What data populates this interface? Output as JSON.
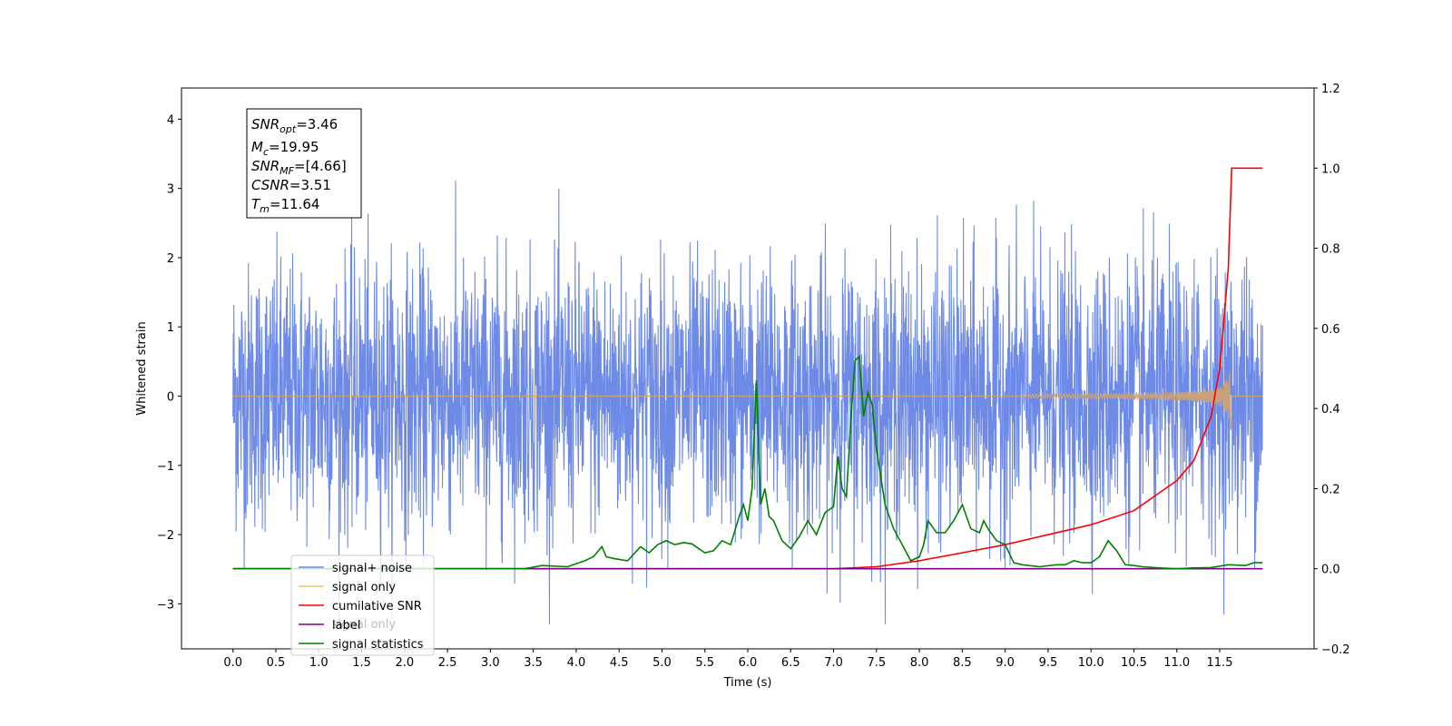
{
  "chart_data": {
    "type": "line",
    "xlabel": "Time (s)",
    "ylabel": "Whitened strain",
    "xlim": [
      -0.6,
      12.6
    ],
    "ylim": [
      -3.65,
      4.45
    ],
    "ylim_right": [
      -0.2,
      1.2
    ],
    "x_ticks": [
      "0.0",
      "0.5",
      "1.0",
      "1.5",
      "2.0",
      "2.5",
      "3.0",
      "3.5",
      "4.0",
      "4.5",
      "5.0",
      "5.5",
      "6.0",
      "6.5",
      "7.0",
      "7.5",
      "8.0",
      "8.5",
      "9.0",
      "9.5",
      "10.0",
      "10.5",
      "11.0",
      "11.5"
    ],
    "y_ticks": [
      "4",
      "3",
      "2",
      "1",
      "0",
      "−1",
      "−2",
      "−3"
    ],
    "y_ticks_right": [
      "1.2",
      "1.0",
      "0.8",
      "0.6",
      "0.4",
      "0.2",
      "0.0",
      "−0.2"
    ],
    "annotation": {
      "snr_opt": {
        "base": "SNR",
        "sub": "opt",
        "value": "=3.46"
      },
      "mc": {
        "base": "M",
        "sub": "c",
        "value": "=19.95"
      },
      "snr_mf": {
        "base": "SNR",
        "sub": "MF",
        "value": "=[4.66]"
      },
      "csnr": {
        "base": "CSNR",
        "value": "=3.51"
      },
      "tm": {
        "base": "T",
        "sub": "m",
        "value": "=11.64"
      }
    },
    "legend_entries": [
      "signal+ noise",
      "signal only",
      "cumilative SNR",
      "label",
      "signal statistics"
    ],
    "legend_ghost_text": "signal only",
    "legend_position": "lower-left",
    "colors": {
      "signal_noise": "#6d8ae6",
      "signal_only": "#f5c06b",
      "overlay_mix": "#c9a27a",
      "cumulative_snr": "#ff0000",
      "label": "#800080",
      "signal_statistics": "#008000"
    },
    "series": [
      {
        "name": "signal+ noise",
        "axis": "left",
        "note": "whitened noise with signal, std ~1, range ~[-3.3, 3.4]",
        "x_range": [
          0.0,
          12.0
        ]
      },
      {
        "name": "signal only",
        "axis": "left",
        "note": "chirp ~0 until ~10s, peaks ~±0.5 at 11.64s, zero after",
        "x_range": [
          0.0,
          12.0
        ]
      },
      {
        "name": "cumilative SNR",
        "axis": "right",
        "x": [
          0.0,
          7.0,
          7.5,
          8.0,
          8.5,
          9.0,
          9.5,
          10.0,
          10.5,
          11.0,
          11.2,
          11.4,
          11.5,
          11.6,
          11.64,
          11.65,
          12.0
        ],
        "y": [
          0.0,
          0.0,
          0.005,
          0.02,
          0.04,
          0.06,
          0.085,
          0.11,
          0.145,
          0.22,
          0.27,
          0.38,
          0.5,
          0.75,
          1.0,
          1.0,
          1.0
        ]
      },
      {
        "name": "label",
        "axis": "right",
        "x": [
          0.0,
          12.0
        ],
        "y": [
          0.0,
          0.0
        ]
      },
      {
        "name": "signal statistics",
        "axis": "right",
        "x": [
          0.0,
          3.4,
          3.6,
          3.9,
          4.1,
          4.2,
          4.3,
          4.35,
          4.45,
          4.6,
          4.75,
          4.85,
          4.95,
          5.05,
          5.15,
          5.25,
          5.35,
          5.5,
          5.6,
          5.7,
          5.8,
          5.9,
          5.95,
          6.0,
          6.05,
          6.1,
          6.15,
          6.2,
          6.25,
          6.3,
          6.4,
          6.5,
          6.6,
          6.7,
          6.8,
          6.9,
          7.0,
          7.05,
          7.1,
          7.15,
          7.2,
          7.25,
          7.3,
          7.35,
          7.4,
          7.45,
          7.5,
          7.6,
          7.7,
          7.8,
          7.9,
          8.0,
          8.05,
          8.1,
          8.2,
          8.3,
          8.4,
          8.5,
          8.6,
          8.7,
          8.75,
          8.8,
          8.9,
          9.0,
          9.1,
          9.2,
          9.4,
          9.6,
          9.7,
          9.8,
          9.9,
          10.0,
          10.1,
          10.15,
          10.2,
          10.3,
          10.4,
          10.5,
          10.6,
          10.8,
          11.0,
          11.2,
          11.4,
          11.6,
          11.8,
          11.9,
          12.0
        ],
        "y": [
          0.0,
          0.0,
          0.008,
          0.005,
          0.02,
          0.03,
          0.055,
          0.03,
          0.025,
          0.02,
          0.055,
          0.04,
          0.06,
          0.07,
          0.06,
          0.065,
          0.062,
          0.04,
          0.045,
          0.07,
          0.06,
          0.13,
          0.16,
          0.12,
          0.2,
          0.47,
          0.16,
          0.2,
          0.13,
          0.12,
          0.07,
          0.05,
          0.08,
          0.12,
          0.085,
          0.14,
          0.155,
          0.28,
          0.2,
          0.18,
          0.37,
          0.52,
          0.53,
          0.38,
          0.44,
          0.41,
          0.3,
          0.16,
          0.1,
          0.06,
          0.02,
          0.03,
          0.06,
          0.12,
          0.09,
          0.09,
          0.12,
          0.16,
          0.1,
          0.09,
          0.12,
          0.1,
          0.07,
          0.06,
          0.015,
          0.01,
          0.005,
          0.01,
          0.01,
          0.02,
          0.015,
          0.015,
          0.03,
          0.05,
          0.07,
          0.045,
          0.01,
          0.008,
          0.005,
          0.002,
          0.0,
          0.002,
          0.003,
          0.01,
          0.008,
          0.015,
          0.015
        ]
      }
    ]
  }
}
